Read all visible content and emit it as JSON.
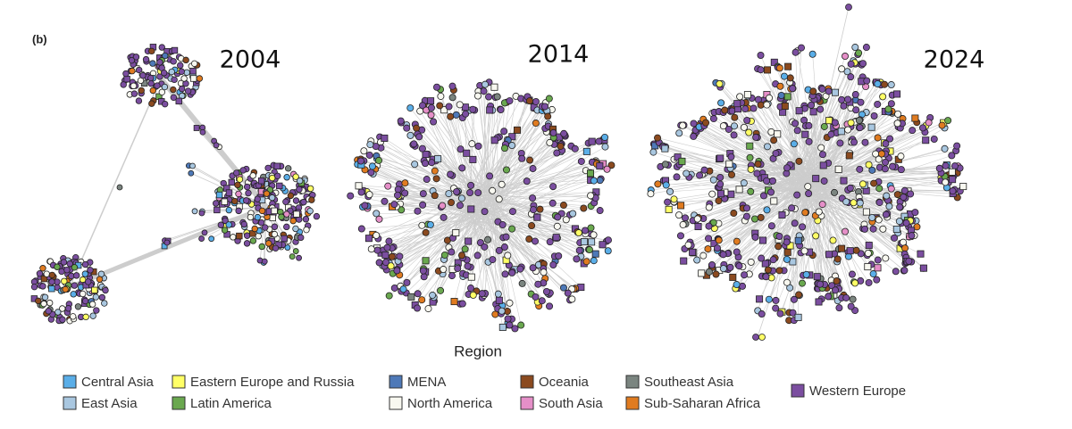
{
  "panel_label": "(b)",
  "networks": [
    {
      "year": "2004"
    },
    {
      "year": "2014"
    },
    {
      "year": "2024"
    }
  ],
  "legend": {
    "title": "Region",
    "items": [
      {
        "label": "Central Asia",
        "color": "#5aaee8"
      },
      {
        "label": "East Asia",
        "color": "#a9c7e0"
      },
      {
        "label": "Eastern Europe and Russia",
        "color": "#ffff66"
      },
      {
        "label": "Latin America",
        "color": "#6aa84f"
      },
      {
        "label": "MENA",
        "color": "#4e79b8"
      },
      {
        "label": "North America",
        "color": "#f8f8f0"
      },
      {
        "label": "Oceania",
        "color": "#8b4a1f"
      },
      {
        "label": "South Asia",
        "color": "#e58fc8"
      },
      {
        "label": "Southeast Asia",
        "color": "#7b8580"
      },
      {
        "label": "Sub-Saharan Africa",
        "color": "#e07b20"
      },
      {
        "label": "Western Europe",
        "color": "#7b4ea0"
      }
    ]
  }
}
